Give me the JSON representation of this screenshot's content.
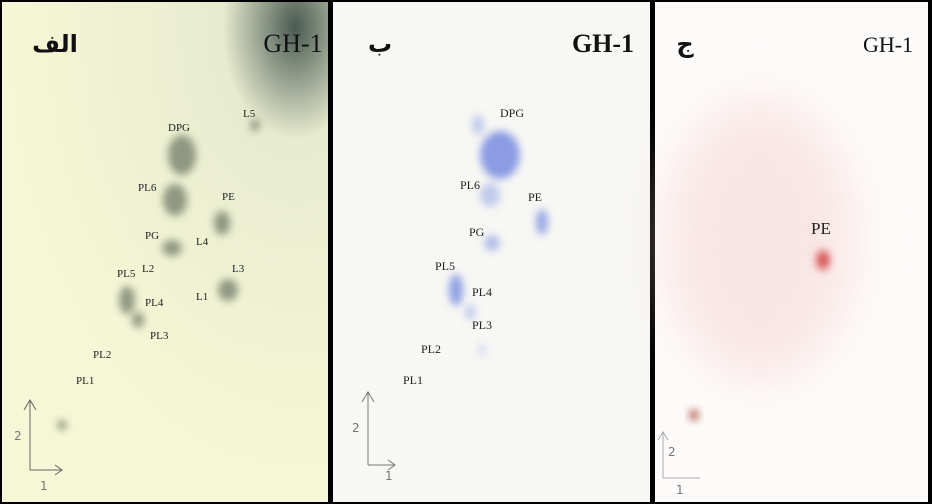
{
  "panels": [
    {
      "letter": "الف",
      "title": "GH-1",
      "axis": [
        "2",
        "1"
      ],
      "spots": [
        "L5",
        "DPG",
        "PL6",
        "PE",
        "PG",
        "L4",
        "L2",
        "L3",
        "PL5",
        "PL4",
        "L1",
        "PL3",
        "PL2",
        "PL1"
      ]
    },
    {
      "letter": "ب",
      "title": "GH-1",
      "axis": [
        "2",
        "1"
      ],
      "spots": [
        "DPG",
        "PL6",
        "PE",
        "PG",
        "PL5",
        "PL4",
        "PL3",
        "PL2",
        "PL1"
      ]
    },
    {
      "letter": "ج",
      "title": "GH-1",
      "axis": [
        "2",
        "1"
      ],
      "spots": [
        "PE"
      ]
    }
  ]
}
